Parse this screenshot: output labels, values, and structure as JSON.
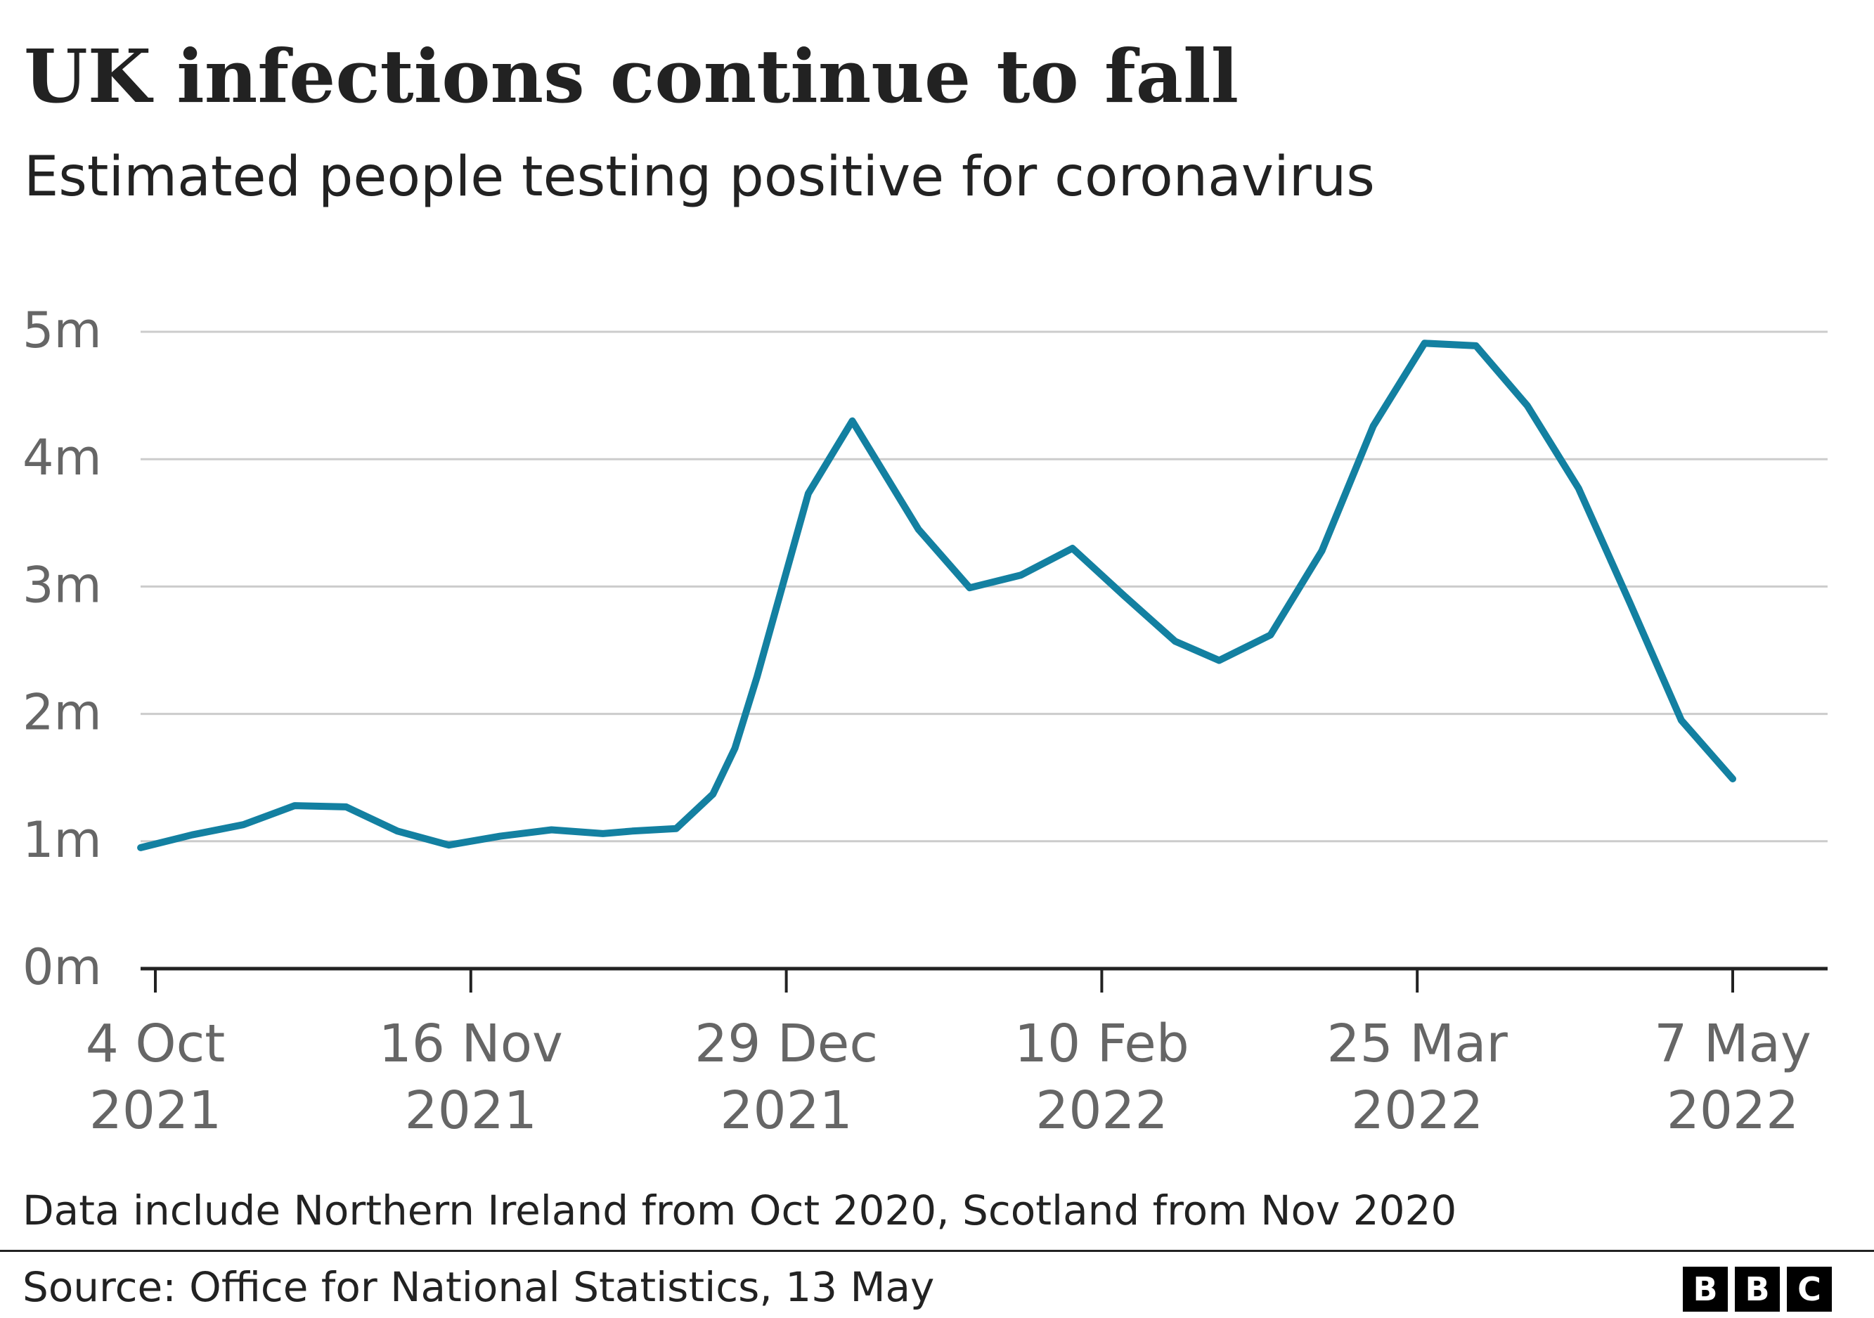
{
  "header": {
    "title": "UK infections continue to fall",
    "subtitle": "Estimated people testing positive for coronavirus"
  },
  "chart_data": {
    "type": "line",
    "title": "UK infections continue to fall",
    "subtitle": "Estimated people testing positive for coronavirus",
    "xlabel": "",
    "ylabel": "",
    "xlim": [
      "2021-10-02",
      "2022-05-17"
    ],
    "ylim": [
      0,
      5
    ],
    "y_ticks": [
      "0m",
      "1m",
      "2m",
      "3m",
      "4m",
      "5m"
    ],
    "y_tick_values": [
      0,
      1,
      2,
      3,
      4,
      5
    ],
    "x_ticks": [
      {
        "date": "2021-10-04",
        "line1": "4 Oct",
        "line2": "2021"
      },
      {
        "date": "2021-11-16",
        "line1": "16 Nov",
        "line2": "2021"
      },
      {
        "date": "2021-12-29",
        "line1": "29 Dec",
        "line2": "2021"
      },
      {
        "date": "2022-02-10",
        "line1": "10 Feb",
        "line2": "2022"
      },
      {
        "date": "2022-03-25",
        "line1": "25 Mar",
        "line2": "2022"
      },
      {
        "date": "2022-05-07",
        "line1": "7 May",
        "line2": "2022"
      }
    ],
    "grid": true,
    "legend": "none",
    "line_color": "#1380a1",
    "series": [
      {
        "x": [
          "2021-10-02",
          "2021-10-09",
          "2021-10-16",
          "2021-10-23",
          "2021-10-30",
          "2021-11-06",
          "2021-11-13",
          "2021-11-20",
          "2021-11-27",
          "2021-12-04",
          "2021-12-08",
          "2021-12-14",
          "2021-12-19",
          "2021-12-22",
          "2021-12-25",
          "2022-01-01",
          "2022-01-07",
          "2022-01-16",
          "2022-01-23",
          "2022-01-30",
          "2022-02-06",
          "2022-02-13",
          "2022-02-20",
          "2022-02-26",
          "2022-03-05",
          "2022-03-12",
          "2022-03-19",
          "2022-03-26",
          "2022-04-02",
          "2022-04-09",
          "2022-04-16",
          "2022-04-23",
          "2022-04-30",
          "2022-05-07"
        ],
        "values": [
          0.95,
          1.05,
          1.13,
          1.28,
          1.27,
          1.08,
          0.97,
          1.04,
          1.09,
          1.06,
          1.08,
          1.1,
          1.37,
          1.73,
          2.29,
          3.73,
          4.3,
          3.45,
          2.99,
          3.09,
          3.3,
          2.93,
          2.57,
          2.42,
          2.62,
          3.28,
          4.26,
          4.91,
          4.89,
          4.42,
          3.77,
          2.87,
          1.95,
          1.49
        ]
      }
    ]
  },
  "footer": {
    "note": "Data include Northern Ireland from Oct 2020, Scotland from Nov 2020",
    "source": "Source: Office for National Statistics, 13 May",
    "logo": [
      "B",
      "B",
      "C"
    ]
  }
}
